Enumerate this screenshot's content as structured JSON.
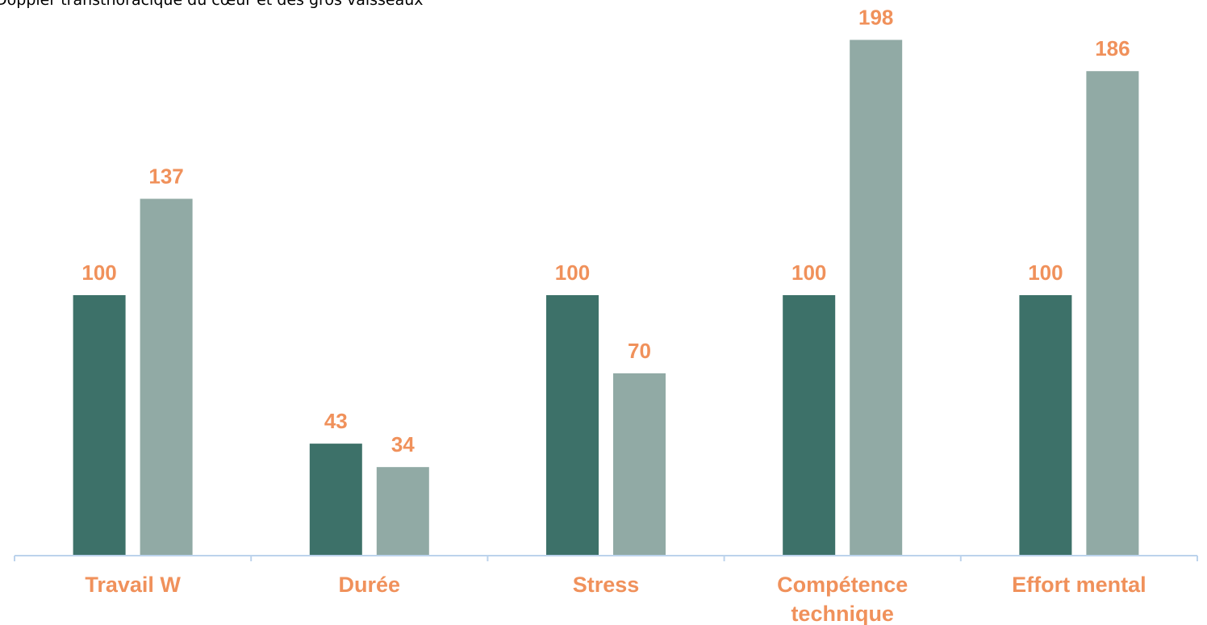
{
  "caption": "Doppler transthoracique du cœur et des gros vaisseaux",
  "colors": {
    "series_1": "#3d7169",
    "series_2": "#91aaa5",
    "labels": "#f0915b",
    "axis": "#bcd3ec"
  },
  "chart_data": {
    "type": "bar",
    "categories": [
      [
        "Travail W"
      ],
      [
        "Durée"
      ],
      [
        "Stress"
      ],
      [
        "Compétence",
        "technique"
      ],
      [
        "Effort mental"
      ]
    ],
    "series": [
      {
        "values": [
          100,
          43,
          100,
          100,
          100
        ]
      },
      {
        "values": [
          137,
          34,
          70,
          198,
          186
        ]
      }
    ],
    "ylim": [
      0,
      200
    ],
    "grid": false,
    "legend": "none"
  }
}
